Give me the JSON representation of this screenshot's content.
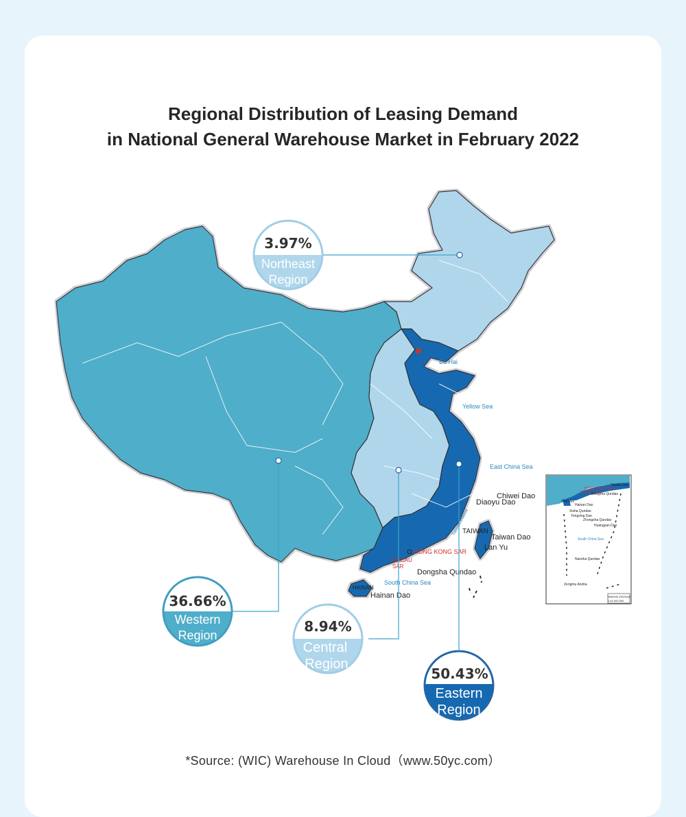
{
  "title": {
    "line1": "Regional Distribution of Leasing Demand",
    "line2": "in National General Warehouse Market in February 2022"
  },
  "regions": [
    {
      "id": "northeast",
      "value": "3.97%",
      "label_line1": "Northeast",
      "label_line2": "Region",
      "share": 3.97,
      "color": "#b0d6ec"
    },
    {
      "id": "western",
      "value": "36.66%",
      "label_line1": "Western",
      "label_line2": "Region",
      "share": 36.66,
      "color": "#4faec9"
    },
    {
      "id": "central",
      "value": "8.94%",
      "label_line1": "Central",
      "label_line2": "Region",
      "share": 8.94,
      "color": "#b0d6ec"
    },
    {
      "id": "eastern",
      "value": "50.43%",
      "label_line1": "Eastern",
      "label_line2": "Region",
      "share": 50.43,
      "color": "#1669b0"
    }
  ],
  "map_labels": {
    "bo_hai": "Bo Hai",
    "yellow_sea": "Yellow Sea",
    "east_china_sea": "East China Sea",
    "south_china_sea": "South China Sea",
    "chiwei_dao": "Chiwei Dao",
    "diaoyu_dao": "Diaoyu Dao",
    "taiwan_strait": "Taiwan Haixia",
    "taiwan": "TAIWAN",
    "taiwan_dao": "Taiwan Dao",
    "lan_yu": "Lan Yu",
    "hong_kong": "HONG KONG SAR",
    "macau_1": "MACAU",
    "macau_2": "SAR",
    "dongsha": "Dongsha Qundao",
    "hainan_prov": "HAINAN",
    "hainan_dao": "Hainan Dao"
  },
  "inset_labels": {
    "taiwan_dao": "Taiwan Dao",
    "hong_kong": "HONG KONG SAR",
    "macau": "MACAU SAR",
    "dongsha": "Dongsha Qundao",
    "hainan_prov": "HAINAN",
    "hainan_dao": "Hainan Dao",
    "xisha": "Xisha Qundao",
    "yongxing": "Yongxing Dao",
    "zhongsha": "Zhongsha Qundao",
    "huangyan": "Huangyan Dao",
    "south_china_sea": "South China Sea",
    "nansha": "Nansha Qundao",
    "zengmu": "Zengmu Ansha",
    "scale_name": "NANHAI ZHUDAO",
    "scale": "1:44 000 000"
  },
  "source": "*Source: (WIC) Warehouse In Cloud（www.50yc.com）"
}
